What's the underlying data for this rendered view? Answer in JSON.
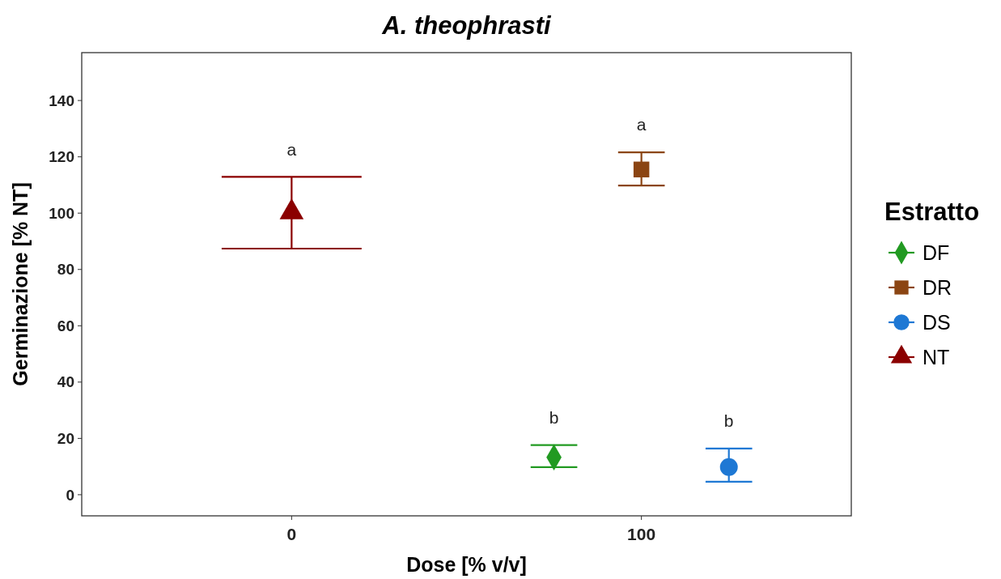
{
  "chart_data": {
    "type": "scatter",
    "title": "A. theophrasti",
    "xlabel": "Dose [% v/v]",
    "ylabel": "Germinazione [% NT]",
    "legend_title": "Estratto",
    "legend": "right",
    "grid": false,
    "categories": [
      "0",
      "100"
    ],
    "ylim": [
      -7.5,
      157
    ],
    "yticks": [
      0,
      20,
      40,
      60,
      80,
      100,
      120,
      140
    ],
    "series": [
      {
        "name": "DF",
        "color": "#229a22",
        "marker": "diamond",
        "x": [
          "100"
        ],
        "values": [
          13.3
        ],
        "errors": [
          [
            9.8,
            17.6
          ]
        ]
      },
      {
        "name": "DR",
        "color": "#8b4513",
        "marker": "square",
        "x": [
          "100"
        ],
        "values": [
          115.5
        ],
        "errors": [
          [
            109.8,
            121.6
          ]
        ]
      },
      {
        "name": "DS",
        "color": "#1e78d4",
        "marker": "circle",
        "x": [
          "100"
        ],
        "values": [
          9.8
        ],
        "errors": [
          [
            4.6,
            16.4
          ]
        ]
      },
      {
        "name": "NT",
        "color": "#8b0000",
        "marker": "triangle",
        "x": [
          "0"
        ],
        "values": [
          100.3
        ],
        "errors": [
          [
            87.4,
            112.9
          ]
        ]
      }
    ],
    "annotations": [
      "b",
      "a",
      "b",
      "a"
    ]
  }
}
